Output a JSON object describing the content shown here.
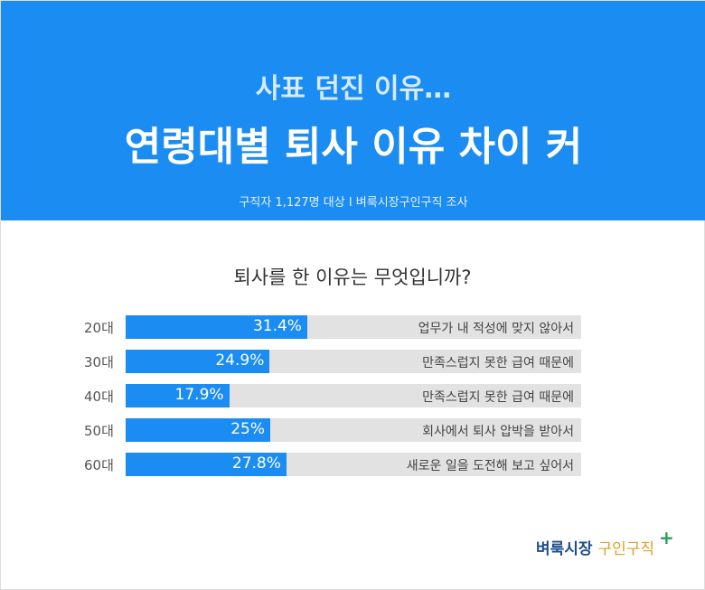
{
  "header": {
    "subtitle": "사표 던진 이유…",
    "title": "연령대별 퇴사 이유 차이 커",
    "note": "구직자 1,127명 대상  I  벼룩시장구인구직 조사"
  },
  "chart_data": {
    "type": "bar",
    "title": "퇴사를 한 이유는 무엇입니까?",
    "categories": [
      "20대",
      "30대",
      "40대",
      "50대",
      "60대"
    ],
    "values": [
      31.4,
      24.9,
      17.9,
      25,
      27.8
    ],
    "labels": [
      "31.4%",
      "24.9%",
      "17.9%",
      "25%",
      "27.8%"
    ],
    "reasons": [
      "업무가 내 적성에 맞지 않아서",
      "만족스럽지 못한 급여 때문에",
      "만족스럽지 못한 급여 때문에",
      "회사에서 퇴사 압박을 받아서",
      "새로운 일을 도전해 보고 싶어서"
    ],
    "color": "#1b8cf2",
    "track_color": "#e2e2e2"
  },
  "logo": {
    "part1": "벼룩시장",
    "part2": "구인구직"
  }
}
